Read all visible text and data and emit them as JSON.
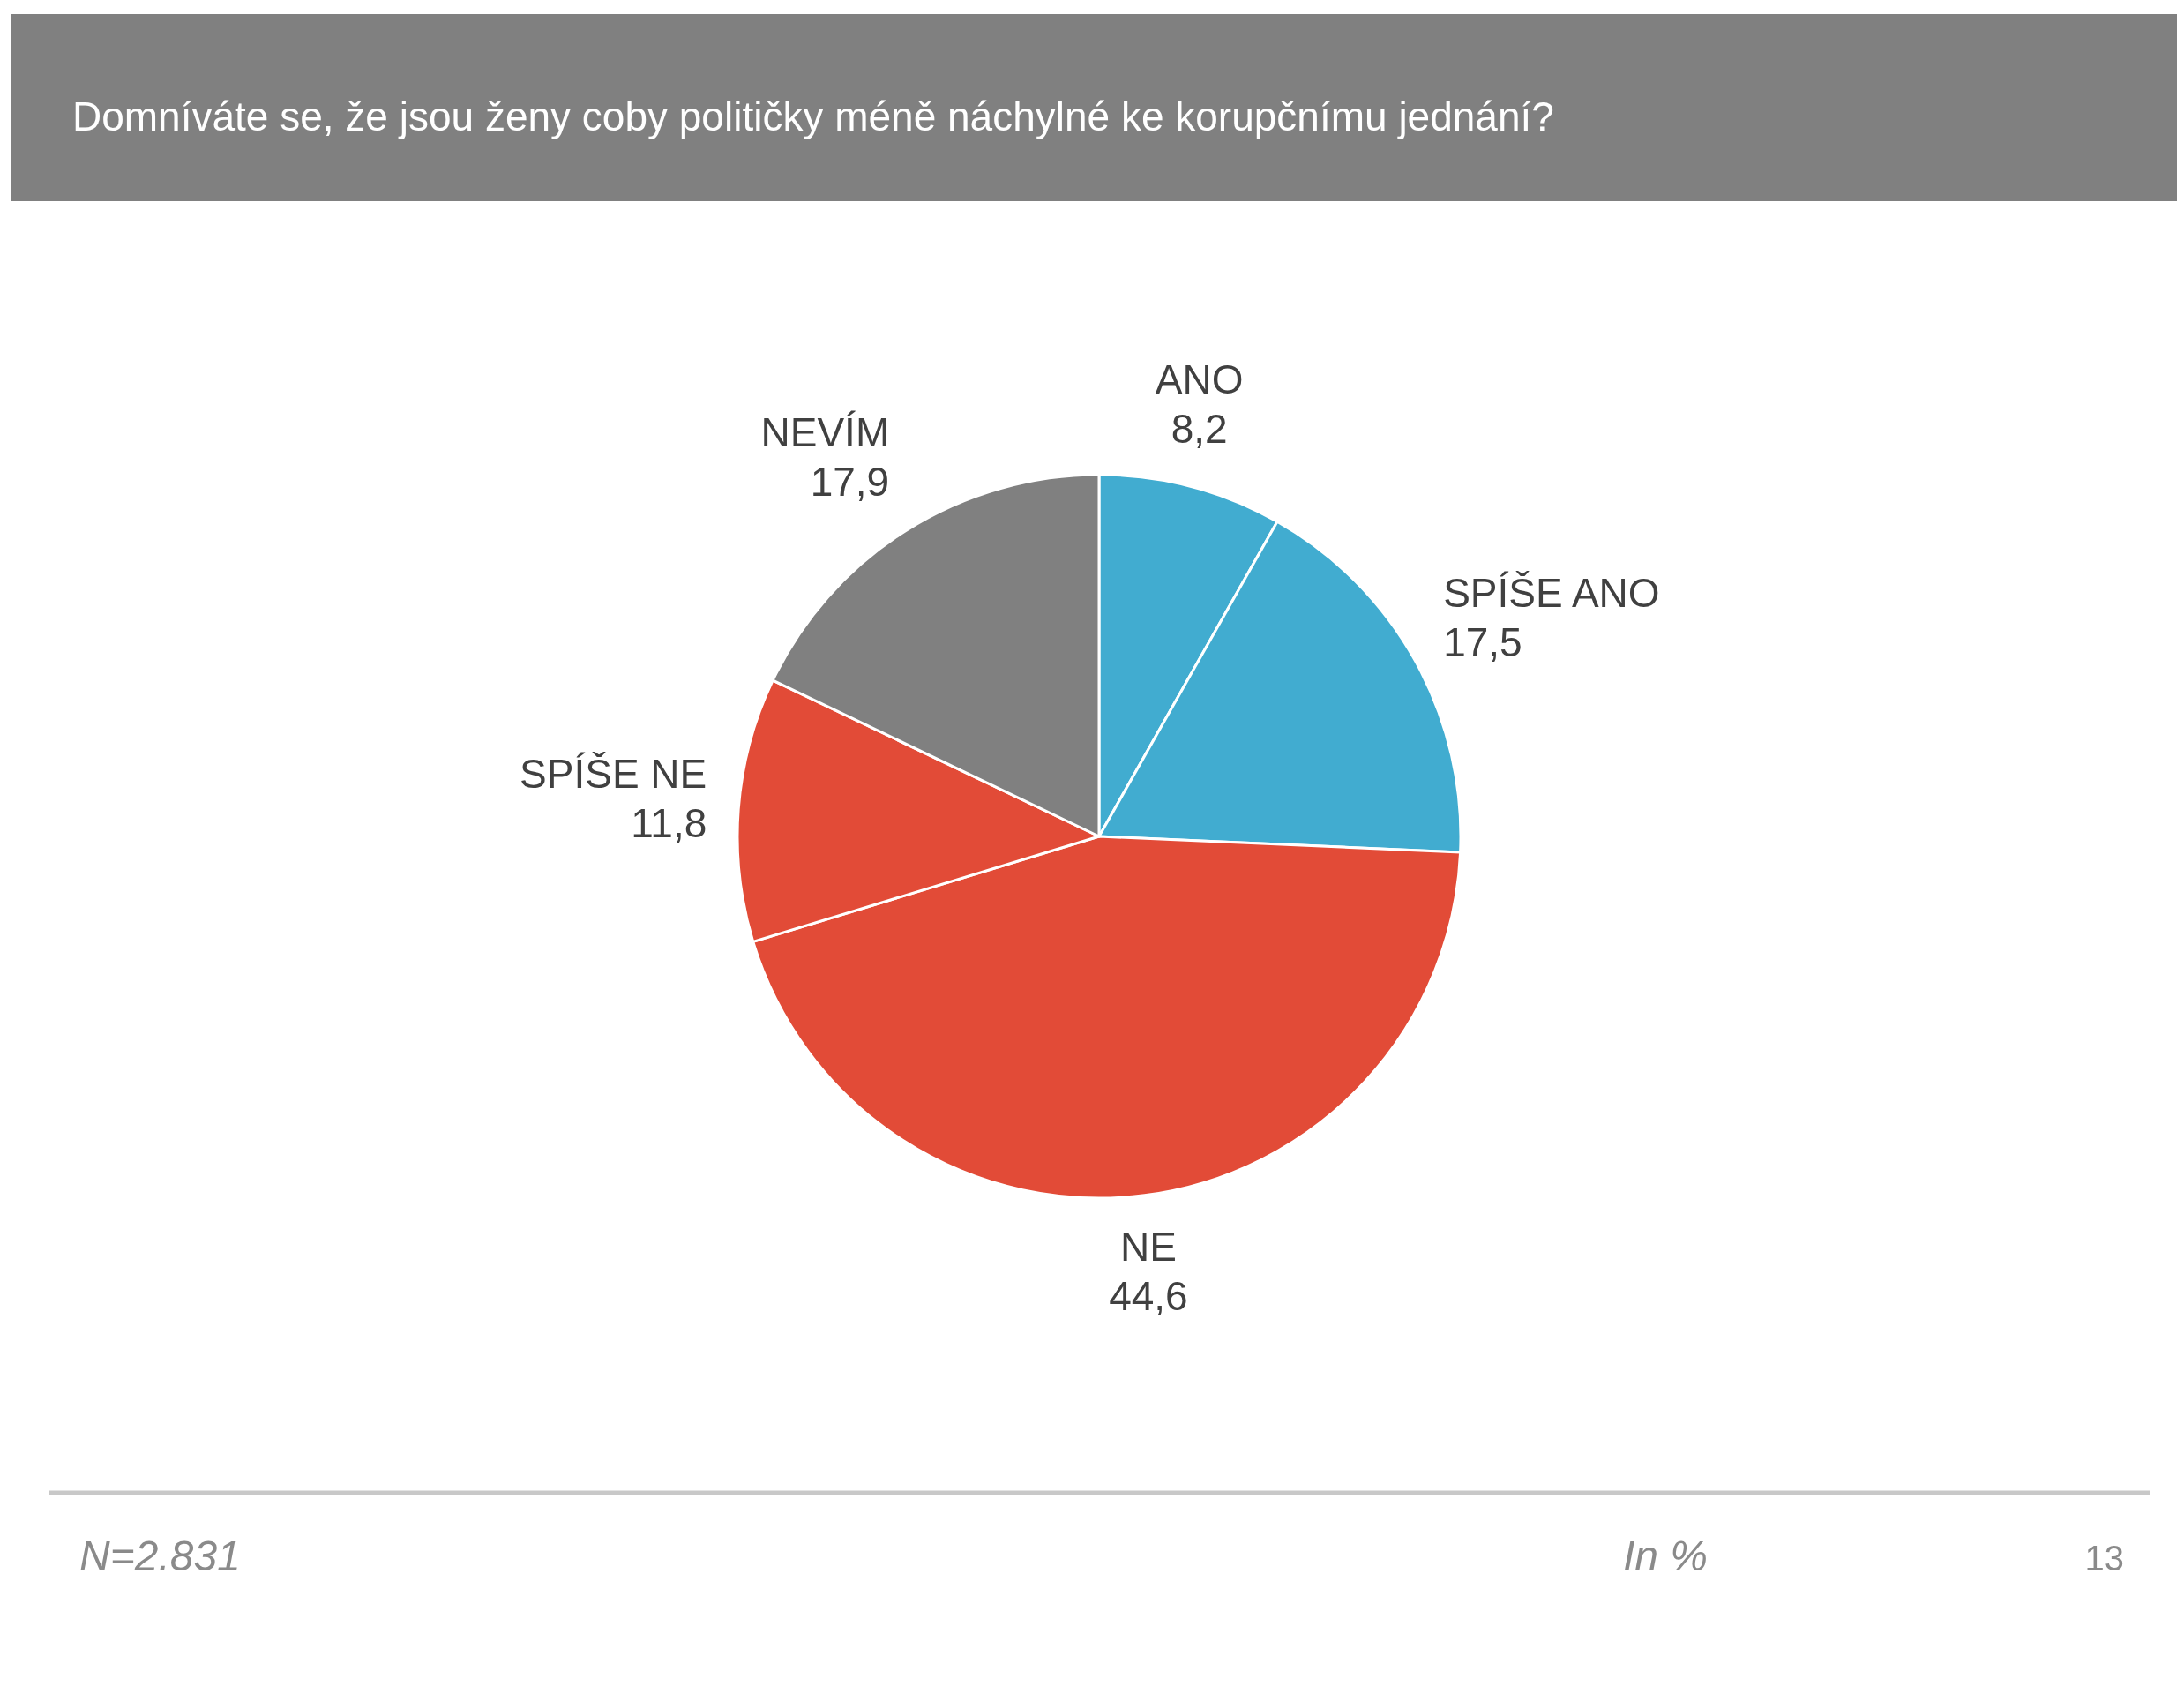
{
  "chart_data": {
    "type": "pie",
    "title": "Domníváte se, že jsou ženy coby političky méně náchylné ke korupčnímu jednání?",
    "categories": [
      "ANO",
      "SPÍŠE ANO",
      "NE",
      "SPÍŠE NE",
      "NEVÍM"
    ],
    "values": [
      8.2,
      17.5,
      44.6,
      11.8,
      17.9
    ],
    "colors": [
      "#41acd0",
      "#41acd0",
      "#e24b37",
      "#e24b37",
      "#808080"
    ],
    "value_labels": [
      "8,2",
      "17,5",
      "44,6",
      "11,8",
      "17,9"
    ],
    "annotations": [
      "N=2.831",
      "In %",
      "13"
    ]
  }
}
